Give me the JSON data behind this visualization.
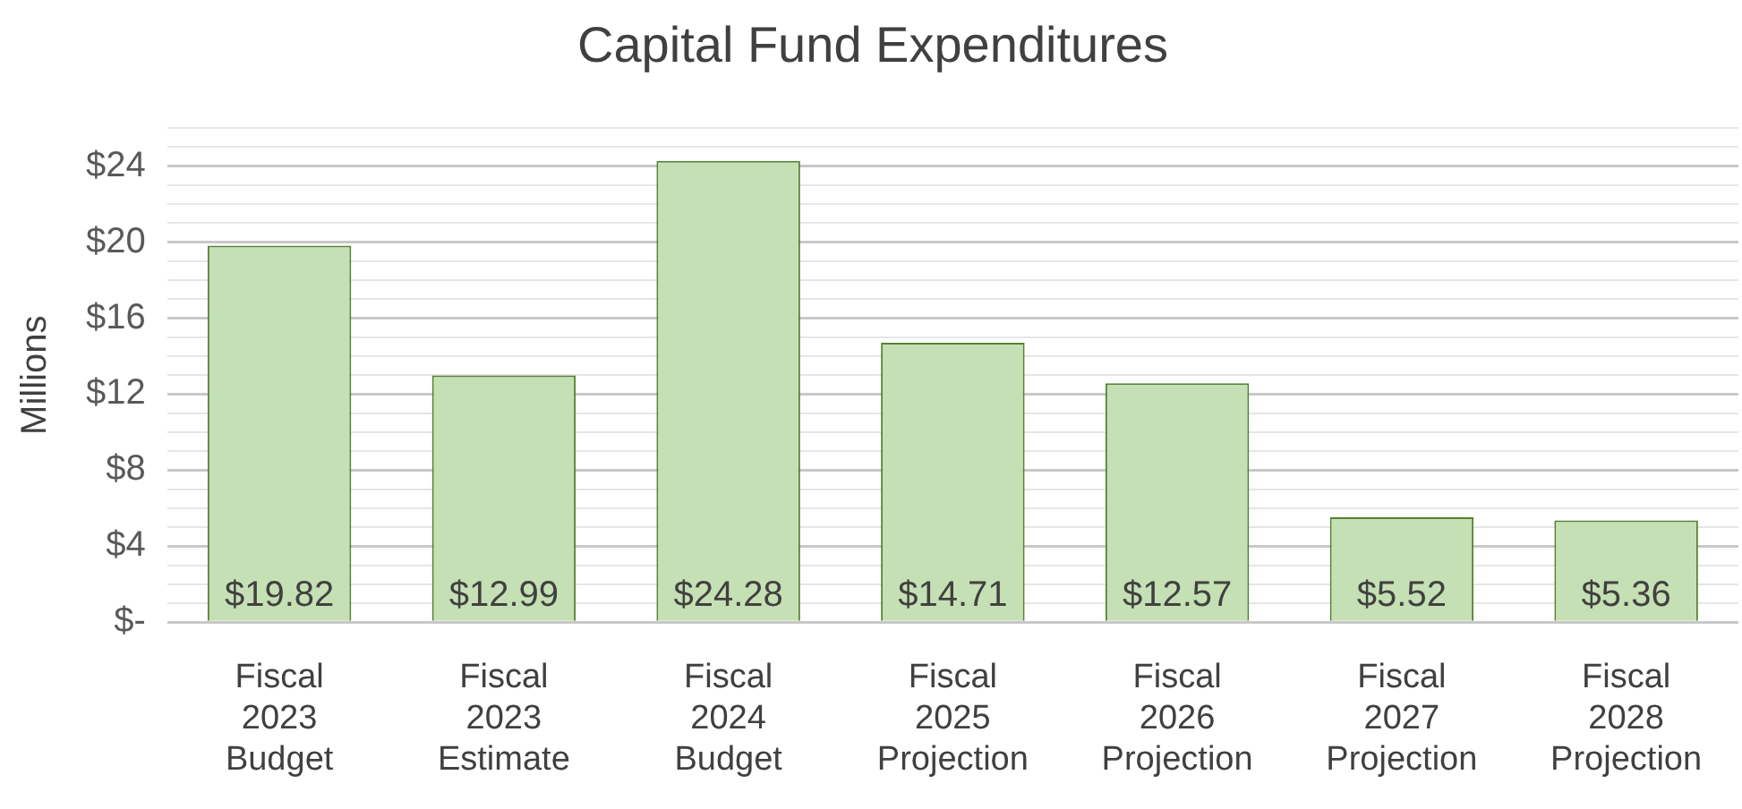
{
  "chart_data": {
    "type": "bar",
    "title": "Capital Fund Expenditures",
    "ylabel": "Millions",
    "categories": [
      "Fiscal 2023 Budget",
      "Fiscal 2023 Estimate",
      "Fiscal 2024 Budget",
      "Fiscal 2025 Projection",
      "Fiscal 2026 Projection",
      "Fiscal 2027 Projection",
      "Fiscal 2028 Projection"
    ],
    "values": [
      19.82,
      12.99,
      24.28,
      14.71,
      12.57,
      5.52,
      5.36
    ],
    "value_labels": [
      "$19.82",
      "$12.99",
      "$24.28",
      "$14.71",
      "$12.57",
      "$5.52",
      "$5.36"
    ],
    "color": "#c5e0b4",
    "ylim": [
      0,
      26
    ],
    "yticks": [
      {
        "value": 0,
        "label": "$-"
      },
      {
        "value": 1,
        "label": null
      },
      {
        "value": 2,
        "label": null
      },
      {
        "value": 3,
        "label": null
      },
      {
        "value": 4,
        "label": "$4"
      },
      {
        "value": 5,
        "label": null
      },
      {
        "value": 6,
        "label": null
      },
      {
        "value": 7,
        "label": null
      },
      {
        "value": 8,
        "label": "$8"
      },
      {
        "value": 9,
        "label": null
      },
      {
        "value": 10,
        "label": null
      },
      {
        "value": 11,
        "label": null
      },
      {
        "value": 12,
        "label": "$12"
      },
      {
        "value": 13,
        "label": null
      },
      {
        "value": 14,
        "label": null
      },
      {
        "value": 15,
        "label": null
      },
      {
        "value": 16,
        "label": "$16"
      },
      {
        "value": 17,
        "label": null
      },
      {
        "value": 18,
        "label": null
      },
      {
        "value": 19,
        "label": null
      },
      {
        "value": 20,
        "label": "$20"
      },
      {
        "value": 21,
        "label": null
      },
      {
        "value": 22,
        "label": null
      },
      {
        "value": 23,
        "label": null
      },
      {
        "value": 24,
        "label": "$24"
      },
      {
        "value": 25,
        "label": null
      },
      {
        "value": 26,
        "label": null
      }
    ],
    "grid": "y",
    "legend": false
  }
}
